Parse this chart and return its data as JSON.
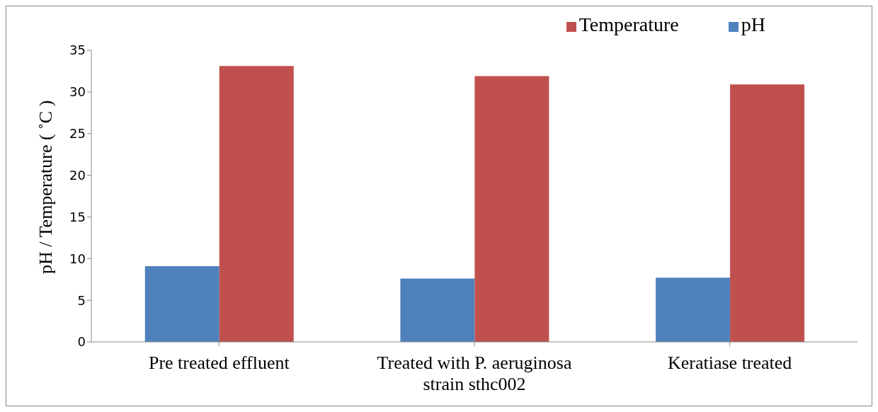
{
  "chart_data": {
    "type": "bar",
    "ylabel": "pH / Temperature ( ˚C )",
    "categories": [
      "Pre treated effluent",
      "Treated with P. aeruginosa strain sthc002",
      "Keratiase treated"
    ],
    "series": [
      {
        "name": "pH",
        "color": "#4f81bd",
        "values": [
          9.1,
          7.6,
          7.7
        ]
      },
      {
        "name": "Temperature",
        "color": "#c0504d",
        "values": [
          33.1,
          31.9,
          30.9
        ]
      }
    ],
    "ylim": [
      0,
      35
    ],
    "yticks": [
      0,
      5,
      10,
      15,
      20,
      25,
      30,
      35
    ],
    "grid": false,
    "legend": "top right"
  }
}
